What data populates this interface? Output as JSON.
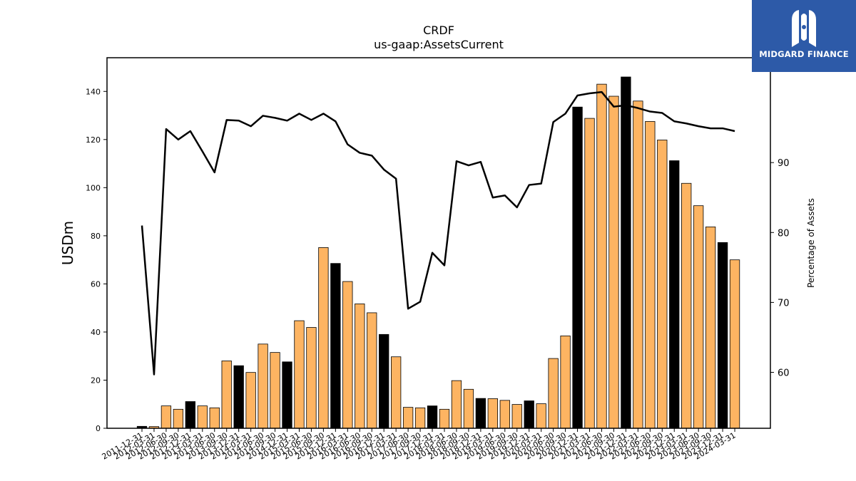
{
  "logo": {
    "text": "MIDGARD FINANCE"
  },
  "chart_data": {
    "type": "bar+line",
    "title": "CRDF",
    "subtitle": "us-gaap:AssetsCurrent",
    "ylabel_left": "USDm",
    "ylabel_right": "Percentage of Assets",
    "ylim_left": [
      0,
      154
    ],
    "ylim_right": [
      52,
      105
    ],
    "yticks_left": [
      0,
      20,
      40,
      60,
      80,
      100,
      120,
      140
    ],
    "yticks_right": [
      60,
      70,
      80,
      90
    ],
    "grid": false,
    "colors": {
      "bar_default": "#fdb462",
      "bar_highlight": "#000000",
      "line": "#000000"
    },
    "categories": [
      "2011-12-31",
      "2012-03-31",
      "2012-06-30",
      "2012-09-30",
      "2012-12-31",
      "2013-03-31",
      "2013-06-30",
      "2013-09-30",
      "2013-12-31",
      "2014-03-31",
      "2014-06-30",
      "2014-09-30",
      "2014-12-31",
      "2015-03-31",
      "2015-06-30",
      "2015-09-30",
      "2015-12-31",
      "2016-03-31",
      "2016-06-30",
      "2016-09-30",
      "2016-12-31",
      "2017-03-31",
      "2017-06-30",
      "2017-09-30",
      "2017-12-31",
      "2018-03-31",
      "2018-06-30",
      "2018-09-30",
      "2018-12-31",
      "2019-03-31",
      "2019-06-30",
      "2019-09-30",
      "2019-12-31",
      "2020-03-31",
      "2020-06-30",
      "2020-09-30",
      "2020-12-31",
      "2021-03-31",
      "2021-06-30",
      "2021-09-30",
      "2021-12-31",
      "2022-03-31",
      "2022-06-30",
      "2022-09-30",
      "2022-12-31",
      "2023-03-31",
      "2023-06-30",
      "2023-09-30",
      "2023-12-31",
      "2024-03-31"
    ],
    "bar_values": [
      0.8,
      0.7,
      9.3,
      7.9,
      11.1,
      9.3,
      8.5,
      28.0,
      26.0,
      23.2,
      35.0,
      31.5,
      27.6,
      44.7,
      41.9,
      75.1,
      68.5,
      61.0,
      51.7,
      48.0,
      39.0,
      29.7,
      8.7,
      8.5,
      9.3,
      7.9,
      19.8,
      16.2,
      12.4,
      12.3,
      11.6,
      9.9,
      11.4,
      10.2,
      29.0,
      38.4,
      133.5,
      128.8,
      143.0,
      138.0,
      146.0,
      136.0,
      127.5,
      119.8,
      111.2,
      101.8,
      92.5,
      83.7,
      77.2,
      70.0
    ],
    "bar_highlight": [
      true,
      false,
      false,
      false,
      true,
      false,
      false,
      false,
      true,
      false,
      false,
      false,
      true,
      false,
      false,
      false,
      true,
      false,
      false,
      false,
      true,
      false,
      false,
      false,
      true,
      false,
      false,
      false,
      true,
      false,
      false,
      false,
      true,
      false,
      false,
      false,
      true,
      false,
      false,
      false,
      true,
      false,
      false,
      false,
      true,
      false,
      false,
      false,
      true,
      false
    ],
    "line_values": [
      81.0,
      59.7,
      94.8,
      93.3,
      94.5,
      91.6,
      88.6,
      96.1,
      96.0,
      95.2,
      96.7,
      96.4,
      96.0,
      97.0,
      96.1,
      97.0,
      95.9,
      92.6,
      91.4,
      91.0,
      89.0,
      87.7,
      69.1,
      70.1,
      77.1,
      75.3,
      90.2,
      89.6,
      90.1,
      85.0,
      85.3,
      83.6,
      86.8,
      87.0,
      95.8,
      97.0,
      99.6,
      99.9,
      100.1,
      98.0,
      98.2,
      97.8,
      97.3,
      97.1,
      95.9,
      95.6,
      95.2,
      94.9,
      94.9,
      94.5
    ]
  }
}
